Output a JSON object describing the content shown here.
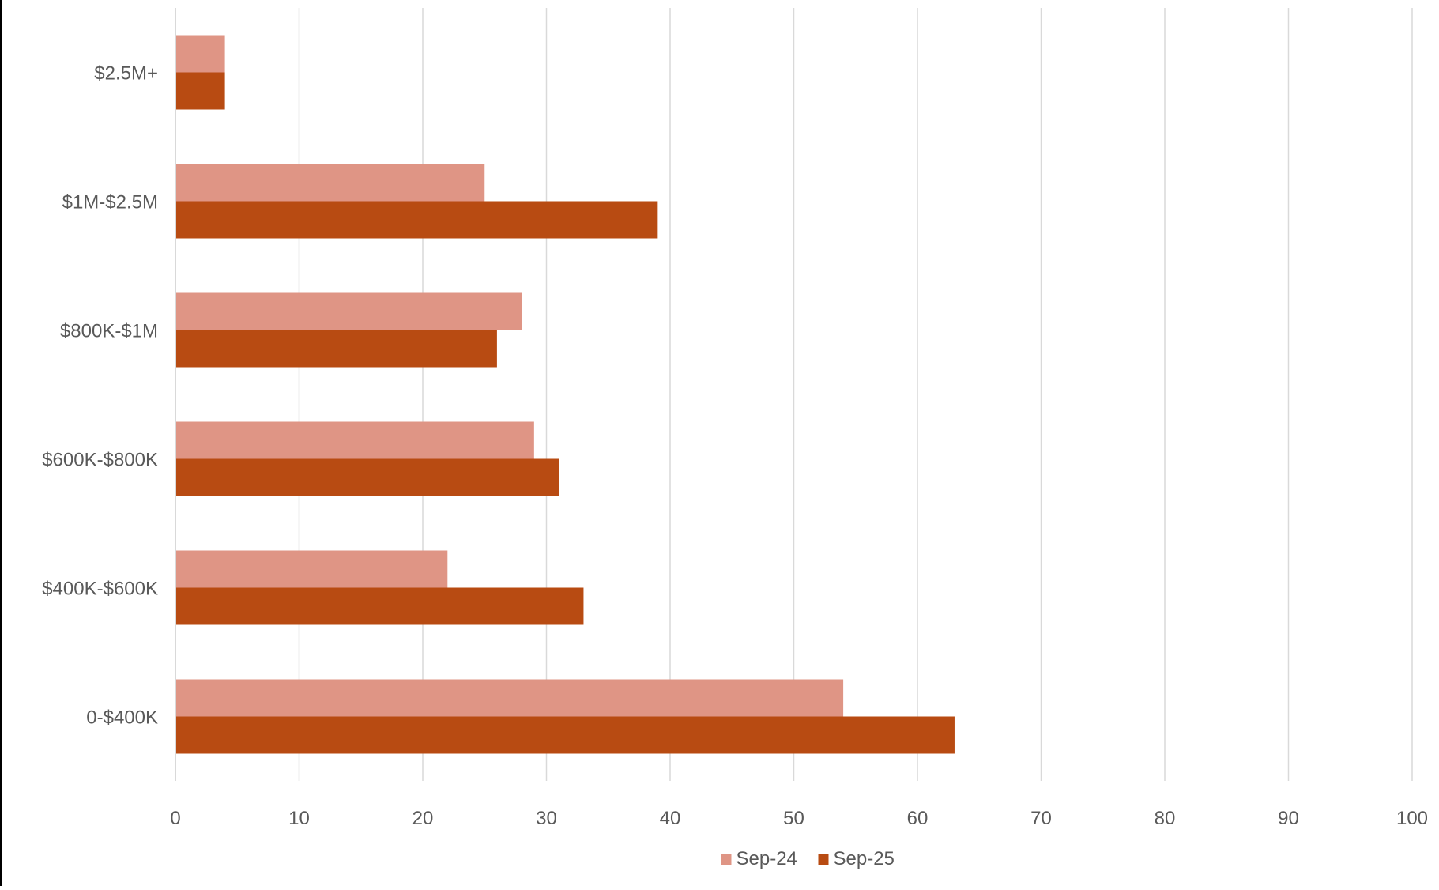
{
  "chart_data": {
    "type": "bar",
    "orientation": "horizontal",
    "categories": [
      "$2.5M+",
      "$1M-$2.5M",
      "$800K-$1M",
      "$600K-$800K",
      "$400K-$600K",
      "0-$400K"
    ],
    "series": [
      {
        "name": "Sep-24",
        "color": "#DF9585",
        "values": [
          4,
          25,
          28,
          29,
          22,
          54
        ]
      },
      {
        "name": "Sep-25",
        "color": "#B84B12",
        "values": [
          4,
          39,
          26,
          31,
          33,
          63
        ]
      }
    ],
    "xlim": [
      0,
      100
    ],
    "xticks": [
      "0",
      "10",
      "20",
      "30",
      "40",
      "50",
      "60",
      "70",
      "80",
      "90",
      "100"
    ],
    "grid": "vertical",
    "legend_position": "bottom"
  }
}
